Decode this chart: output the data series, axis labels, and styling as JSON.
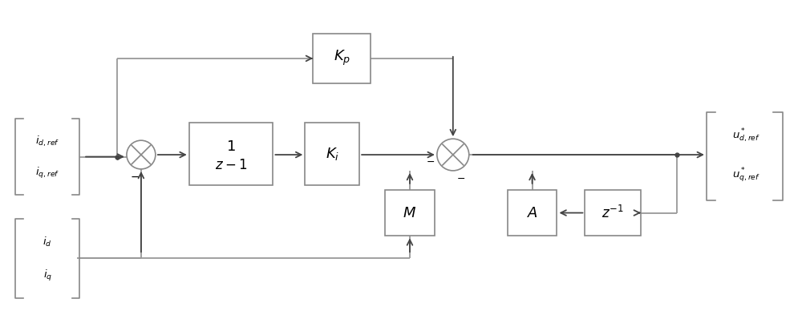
{
  "bg_color": "#ffffff",
  "line_color": "#999999",
  "block_edge_color": "#888888",
  "arrow_color": "#444444",
  "text_color": "#000000",
  "fig_width": 10.0,
  "fig_height": 4.03
}
